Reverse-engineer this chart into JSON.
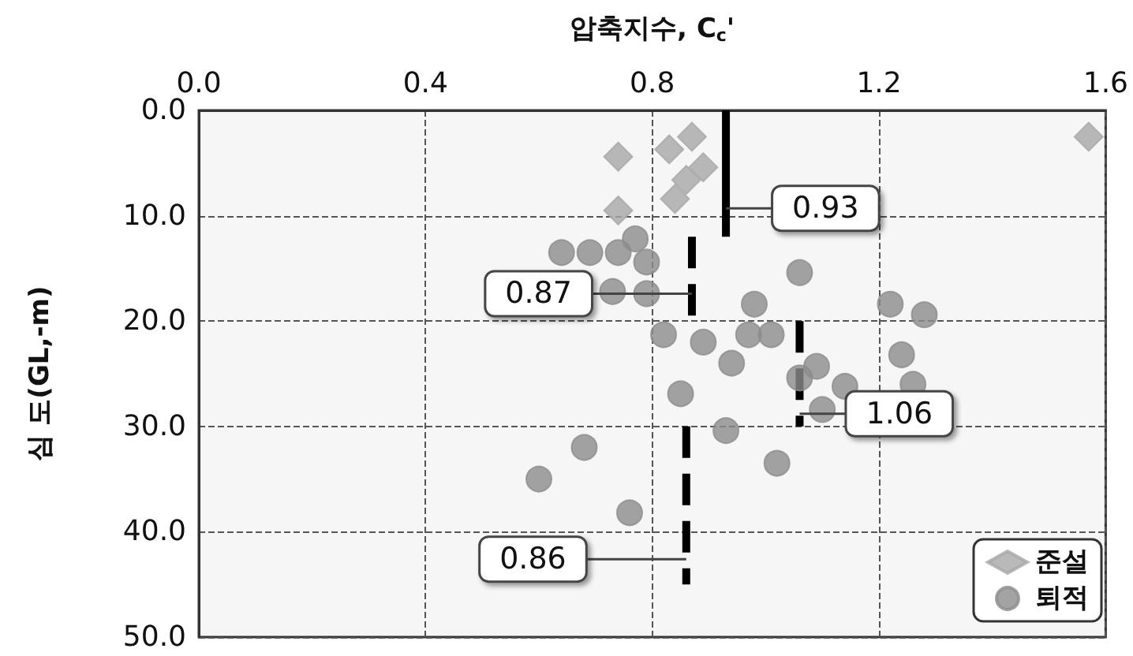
{
  "chart_data": {
    "type": "scatter",
    "xlabel": "압축지수, C$_{c}$'",
    "ylabel": "심 도(GL,-m)",
    "xlim": [
      0,
      1.6
    ],
    "xticks": [
      {
        "value": 0,
        "label": "0.0"
      },
      {
        "value": 0.4,
        "label": "0.4"
      },
      {
        "value": 0.8,
        "label": "0.8"
      },
      {
        "value": 1.2,
        "label": "1.2"
      },
      {
        "value": 1.6,
        "label": "1.6"
      }
    ],
    "ylim": [
      50,
      0
    ],
    "yticks": [
      {
        "value": 0,
        "label": "0.0"
      },
      {
        "value": 10,
        "label": "10.0"
      },
      {
        "value": 20,
        "label": "20.0"
      },
      {
        "value": 30,
        "label": "30.0"
      },
      {
        "value": 40,
        "label": "40.0"
      },
      {
        "value": 50,
        "label": "50.0"
      }
    ],
    "grid": true,
    "legend": "bottom right",
    "series": [
      {
        "name": "준설",
        "color": "#a8a8a8",
        "marker": "diamond",
        "x": [
          0.87,
          0.83,
          0.89,
          0.86,
          0.84,
          0.74,
          0.74,
          1.57
        ],
        "values": [
          2.5,
          3.7,
          5.4,
          6.6,
          8.4,
          4.4,
          9.5,
          2.5
        ]
      },
      {
        "name": "퇴적",
        "color": "#8c8c8c",
        "marker": "circle",
        "x": [
          0.64,
          0.69,
          0.74,
          0.77,
          0.79,
          0.73,
          0.79,
          0.82,
          0.89,
          0.98,
          0.94,
          0.97,
          1.01,
          1.06,
          1.22,
          1.28,
          1.24,
          1.26,
          1.09,
          1.06,
          1.14,
          1.1,
          0.93,
          1.02,
          0.85,
          0.68,
          0.6,
          0.76
        ],
        "values": [
          13.5,
          13.5,
          13.5,
          12.2,
          14.4,
          17.2,
          17.4,
          21.3,
          22,
          18.4,
          24,
          21.3,
          21.3,
          15.4,
          18.4,
          19.4,
          23.2,
          26,
          24.3,
          25.4,
          26.2,
          28.4,
          30.4,
          33.5,
          26.9,
          32,
          35,
          38.2
        ]
      },
      {
        "type": "line",
        "color": "#000000",
        "line_style": "solid",
        "x": [
          0.93,
          0.93
        ],
        "values": [
          0,
          12
        ]
      },
      {
        "type": "line",
        "color": "#000000",
        "line_style": "dashed",
        "x": [
          0.87,
          0.87
        ],
        "values": [
          12,
          20
        ]
      },
      {
        "type": "line",
        "color": "#000000",
        "line_style": "dashed",
        "x": [
          1.06,
          1.06
        ],
        "values": [
          20,
          30
        ]
      },
      {
        "type": "line",
        "color": "#000000",
        "line_style": "dashed",
        "x": [
          0.86,
          0.86
        ],
        "values": [
          30,
          45
        ]
      }
    ],
    "annotations": [
      {
        "text": "0.93",
        "x": 0.93,
        "y": 9.3
      },
      {
        "text": "0.87",
        "x": 0.87,
        "y": 17.4
      },
      {
        "text": "1.06",
        "x": 1.06,
        "y": 28.8
      },
      {
        "text": "0.86",
        "x": 0.86,
        "y": 42.6
      }
    ]
  }
}
